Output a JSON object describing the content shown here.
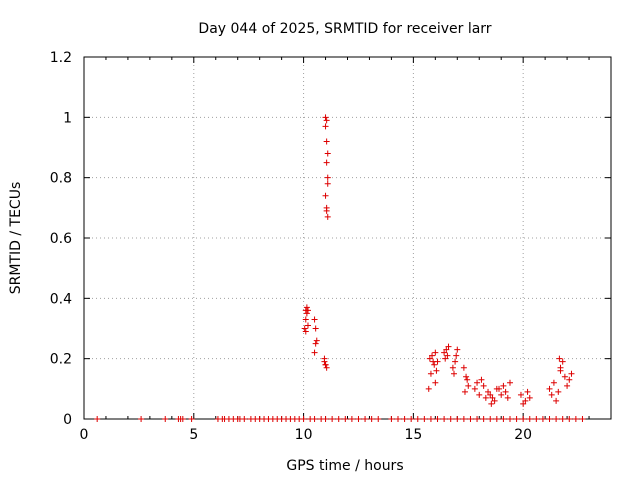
{
  "chart_data": {
    "type": "scatter",
    "title": "Day 044 of 2025, SRMTID for receiver larr",
    "xlabel": "GPS time / hours",
    "ylabel": "SRMTID / TECUs",
    "xlim": [
      0,
      24
    ],
    "ylim": [
      0,
      1.2
    ],
    "xticks": [
      0,
      5,
      10,
      15,
      20
    ],
    "xtick_labels": [
      "0",
      "5",
      "10",
      "15",
      "20"
    ],
    "yticks": [
      0,
      0.2,
      0.4,
      0.6,
      0.8,
      1.0,
      1.2
    ],
    "ytick_labels": [
      "0",
      "0.2",
      "0.4",
      "0.6",
      "0.8",
      "1",
      "1.2"
    ],
    "grid": true,
    "marker": "+",
    "color": "#dd0000",
    "series": [
      {
        "name": "SRMTID",
        "x": [
          0.6,
          2.6,
          3.7,
          4.3,
          4.4,
          4.5,
          4.9,
          6.1,
          6.3,
          6.4,
          6.6,
          6.8,
          7.0,
          7.1,
          7.3,
          7.6,
          7.8,
          8.0,
          8.2,
          8.4,
          8.6,
          8.8,
          9.0,
          9.2,
          9.4,
          9.6,
          9.8,
          10.0,
          10.3,
          10.5,
          10.8,
          11.0,
          11.3,
          11.6,
          11.9,
          12.2,
          12.5,
          12.8,
          13.1,
          13.4,
          14.0,
          14.3,
          14.6,
          14.9,
          15.2,
          15.5,
          15.8,
          16.1,
          16.4,
          16.7,
          17.0,
          17.3,
          17.6,
          17.9,
          18.2,
          18.5,
          18.8,
          19.1,
          19.4,
          19.7,
          20.0,
          20.3,
          20.6,
          20.9,
          21.2,
          21.5,
          21.8,
          22.1,
          22.4,
          22.7,
          10.05,
          10.1,
          10.1,
          10.15,
          10.2,
          10.2,
          10.1,
          10.15,
          10.5,
          10.55,
          10.6,
          10.5,
          10.55,
          10.95,
          11.0,
          11.05,
          10.95,
          11.0,
          11.0,
          11.05,
          11.0,
          11.05,
          11.1,
          11.05,
          11.1,
          11.1,
          11.0,
          11.05,
          11.1,
          11.05,
          15.7,
          15.8,
          15.9,
          15.75,
          15.85,
          16.0,
          16.05,
          15.95,
          16.0,
          16.1,
          16.4,
          16.5,
          16.6,
          16.55,
          16.45,
          16.8,
          16.9,
          17.0,
          16.95,
          16.85,
          17.3,
          17.4,
          17.5,
          17.35,
          17.45,
          17.8,
          17.9,
          18.0,
          18.1,
          18.2,
          18.3,
          18.4,
          18.5,
          18.6,
          18.7,
          18.8,
          18.55,
          18.9,
          19.0,
          19.1,
          19.2,
          19.3,
          19.4,
          19.9,
          20.0,
          20.1,
          20.2,
          20.3,
          21.2,
          21.3,
          21.4,
          21.5,
          21.6,
          21.7,
          21.8,
          21.9,
          22.0,
          22.1,
          22.2,
          21.65,
          21.7
        ],
        "y": [
          0,
          0,
          0,
          0,
          0,
          0,
          0,
          0,
          0,
          0,
          0,
          0,
          0,
          0,
          0,
          0,
          0,
          0,
          0,
          0,
          0,
          0,
          0,
          0,
          0,
          0,
          0,
          0,
          0,
          0,
          0,
          0,
          0,
          0,
          0,
          0,
          0,
          0,
          0,
          0,
          0,
          0,
          0,
          0,
          0,
          0,
          0,
          0,
          0,
          0,
          0,
          0,
          0,
          0,
          0,
          0,
          0,
          0,
          0,
          0,
          0,
          0,
          0,
          0,
          0,
          0,
          0,
          0,
          0,
          0,
          0.3,
          0.33,
          0.36,
          0.37,
          0.36,
          0.31,
          0.29,
          0.35,
          0.33,
          0.3,
          0.26,
          0.22,
          0.25,
          0.2,
          0.18,
          0.17,
          0.19,
          0.18,
          1.0,
          0.99,
          0.97,
          0.92,
          0.88,
          0.85,
          0.8,
          0.78,
          0.74,
          0.69,
          0.67,
          0.7,
          0.1,
          0.15,
          0.19,
          0.2,
          0.21,
          0.12,
          0.16,
          0.18,
          0.22,
          0.19,
          0.22,
          0.23,
          0.24,
          0.21,
          0.2,
          0.17,
          0.19,
          0.23,
          0.21,
          0.15,
          0.17,
          0.14,
          0.11,
          0.09,
          0.13,
          0.1,
          0.12,
          0.08,
          0.13,
          0.11,
          0.07,
          0.09,
          0.08,
          0.07,
          0.06,
          0.1,
          0.05,
          0.1,
          0.08,
          0.11,
          0.09,
          0.07,
          0.12,
          0.08,
          0.05,
          0.06,
          0.09,
          0.07,
          0.1,
          0.08,
          0.12,
          0.06,
          0.09,
          0.17,
          0.19,
          0.14,
          0.11,
          0.13,
          0.15,
          0.2,
          0.16
        ]
      }
    ]
  }
}
